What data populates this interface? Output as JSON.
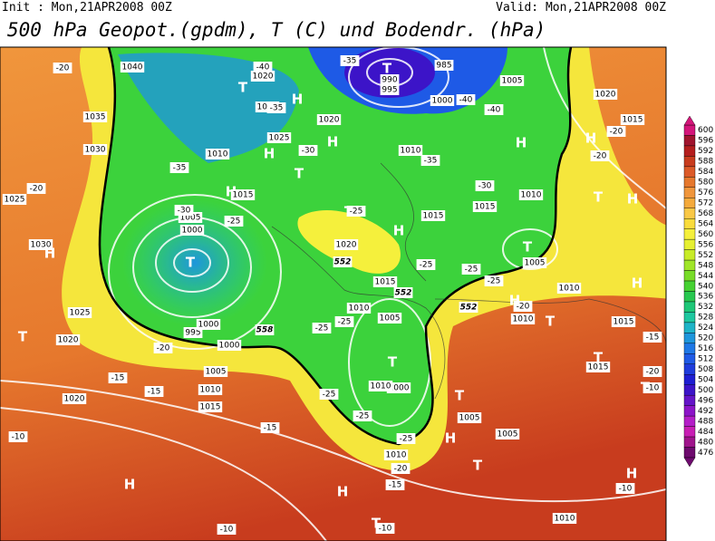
{
  "header": {
    "init": "Init : Mon,21APR2008 00Z",
    "valid": "Valid: Mon,21APR2008 00Z",
    "title": "500 hPa Geopot.(gpdm), T (C) und Bodendr. (hPa)"
  },
  "colorbar": {
    "labels": [
      600,
      596,
      592,
      588,
      584,
      580,
      576,
      572,
      568,
      564,
      560,
      556,
      552,
      548,
      544,
      540,
      536,
      532,
      528,
      524,
      520,
      516,
      512,
      508,
      504,
      500,
      496,
      492,
      488,
      484,
      480,
      476
    ],
    "colors": [
      "#d4157a",
      "#a0142e",
      "#b41e1e",
      "#c83c1e",
      "#dc5a28",
      "#e6782d",
      "#f0963c",
      "#f5aa3c",
      "#fac846",
      "#fadc3c",
      "#f5f03c",
      "#e6f032",
      "#c8ec28",
      "#a0e628",
      "#78dc28",
      "#46d232",
      "#28c850",
      "#1ec878",
      "#1ec8a0",
      "#1eb4c8",
      "#1e96dc",
      "#1e78e6",
      "#1e5ae6",
      "#1e3cdc",
      "#1e1ed2",
      "#3c14c8",
      "#6414c8",
      "#8c14c8",
      "#b41ec8",
      "#c81eb4",
      "#a0148c",
      "#6e0a6e"
    ]
  },
  "map": {
    "labels": [
      "T",
      "H",
      "T",
      "H",
      "H",
      "H",
      "H",
      "T",
      "H",
      "T",
      "T",
      "H",
      "T",
      "H",
      "T",
      "H",
      "T",
      "H",
      "T",
      "T",
      "T",
      "T",
      "H",
      "T",
      "H",
      "H",
      "H",
      "T",
      "T",
      "H",
      "1040",
      "1035",
      "1030",
      "1025",
      "1030",
      "1025",
      "1020",
      "1020",
      "1020",
      "1015",
      "1025",
      "1010",
      "1015",
      "1005",
      "1000",
      "995",
      "1000",
      "1000",
      "1005",
      "1010",
      "1015",
      "1020",
      "1010",
      "1015",
      "1020",
      "1015",
      "1010",
      "1005",
      "1000",
      "1010",
      "1005",
      "1005",
      "1010",
      "1015",
      "1010",
      "1005",
      "1010",
      "1010",
      "1015",
      "1015",
      "1020",
      "1015",
      "1005",
      "1000",
      "985",
      "990",
      "995",
      "1010",
      "-20",
      "-40",
      "-35",
      "-35",
      "-30",
      "-35",
      "-40",
      "-40",
      "-35",
      "-30",
      "-20",
      "-20",
      "-20",
      "-25",
      "-25",
      "-30",
      "-25",
      "-25",
      "-25",
      "-20",
      "-25",
      "-25",
      "-20",
      "-15",
      "-15",
      "-15",
      "-10",
      "-25",
      "-25",
      "-20",
      "-25",
      "-15",
      "-10",
      "-10",
      "-10",
      "-15",
      "-20",
      "-10",
      "552",
      "552",
      "552",
      "558"
    ]
  }
}
